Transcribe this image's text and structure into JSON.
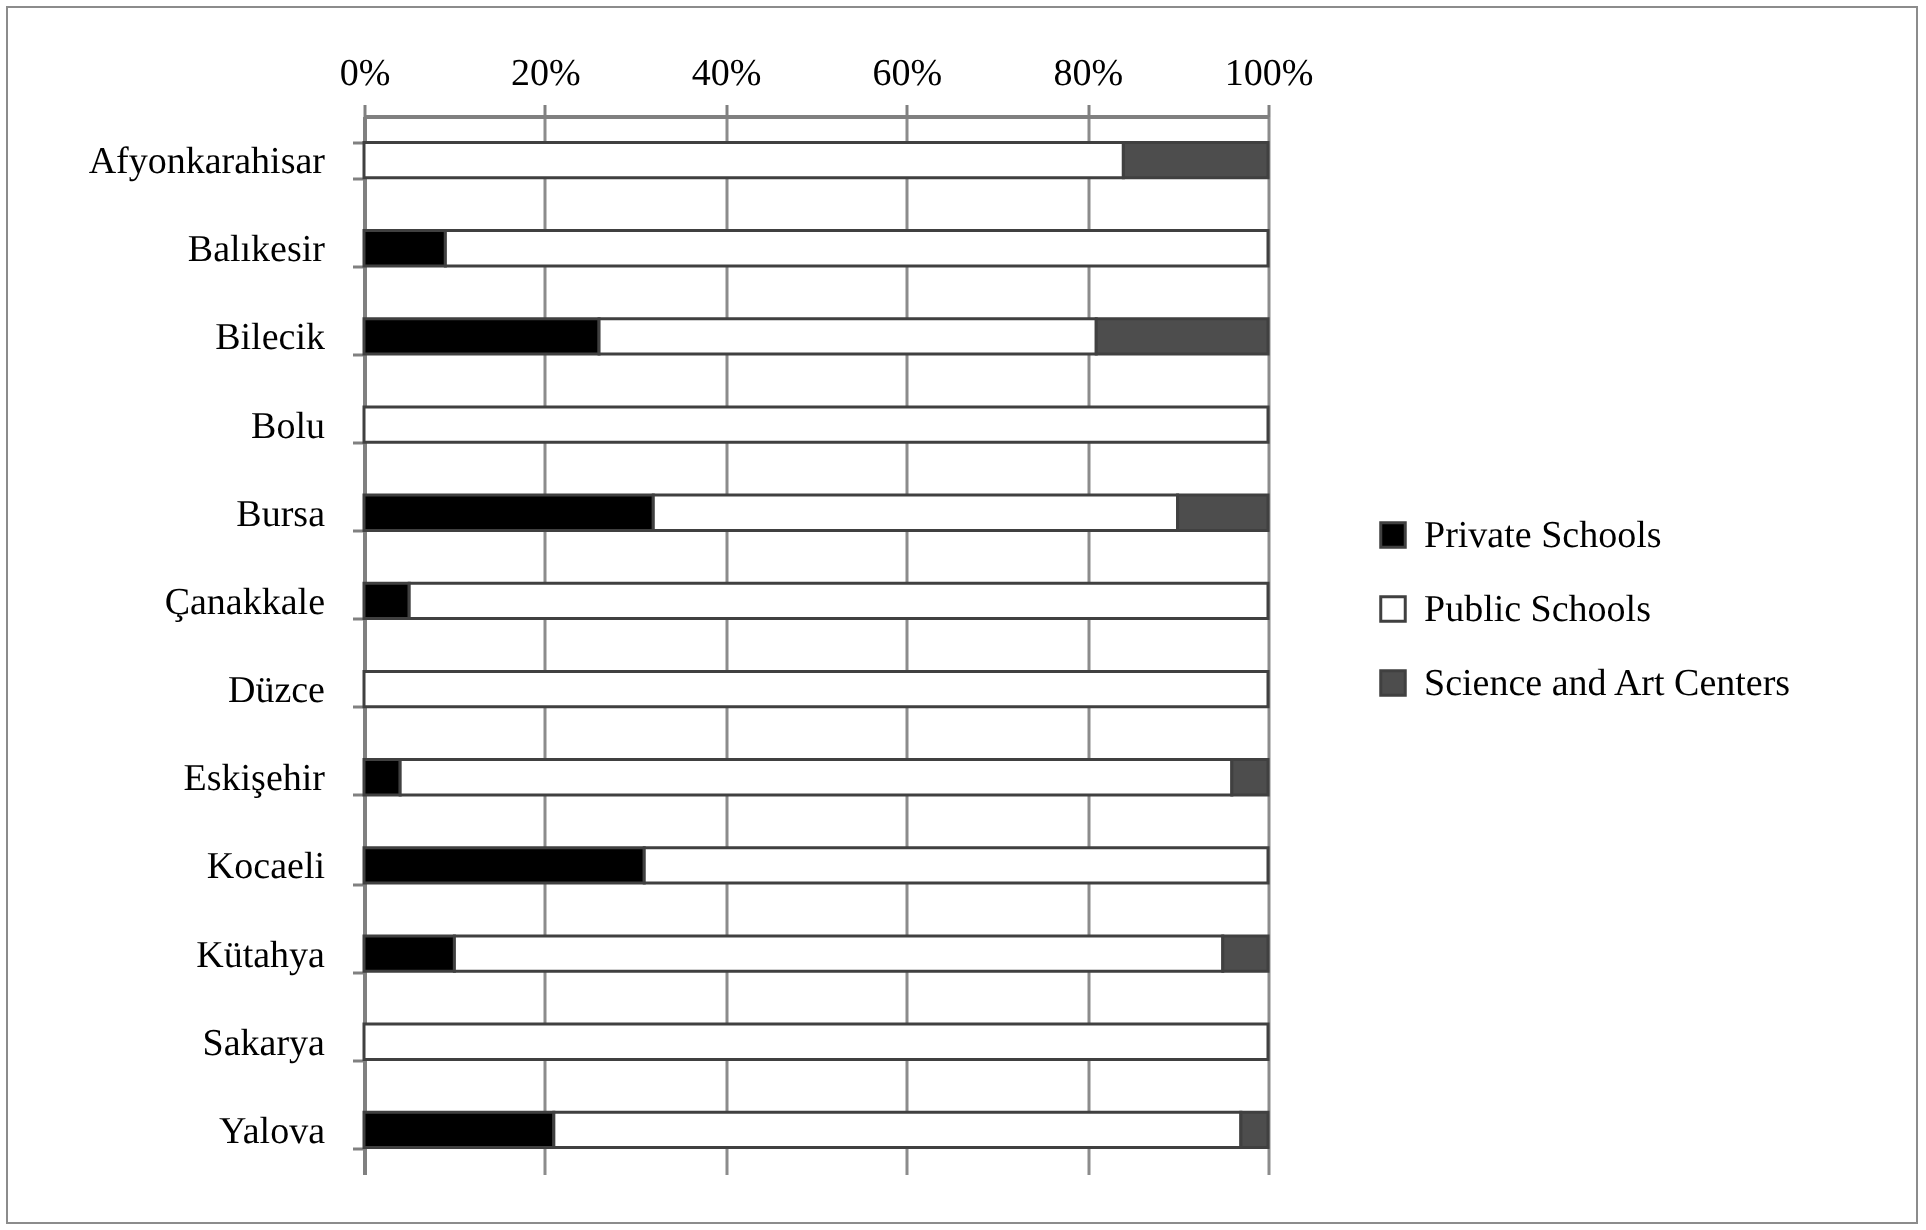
{
  "chart_data": {
    "type": "bar",
    "orientation": "horizontal",
    "stacked": true,
    "categories": [
      "Afyonkarahisar",
      "Balıkesir",
      "Bilecik",
      "Bolu",
      "Bursa",
      "Çanakkale",
      "Düzce",
      "Eskişehir",
      "Kocaeli",
      "Kütahya",
      "Sakarya",
      "Yalova"
    ],
    "series": [
      {
        "name": "Private Schools",
        "color": "#000000",
        "values": [
          0,
          9,
          26,
          0,
          32,
          5,
          0,
          4,
          31,
          10,
          0,
          21
        ]
      },
      {
        "name": "Public Schools",
        "color": "#ffffff",
        "values": [
          84,
          91,
          55,
          100,
          58,
          95,
          100,
          92,
          69,
          85,
          100,
          76
        ]
      },
      {
        "name": "Science and Art Centers",
        "color": "#4d4d4d",
        "values": [
          16,
          0,
          19,
          0,
          10,
          0,
          0,
          4,
          0,
          5,
          0,
          3
        ]
      }
    ],
    "xlim": [
      0,
      100
    ],
    "xticks": [
      {
        "value": 0,
        "label": "0%"
      },
      {
        "value": 20,
        "label": "20%"
      },
      {
        "value": 40,
        "label": "40%"
      },
      {
        "value": 60,
        "label": "60%"
      },
      {
        "value": 80,
        "label": "80%"
      },
      {
        "value": 100,
        "label": "100%"
      }
    ],
    "grid": "x",
    "legend": "right"
  }
}
